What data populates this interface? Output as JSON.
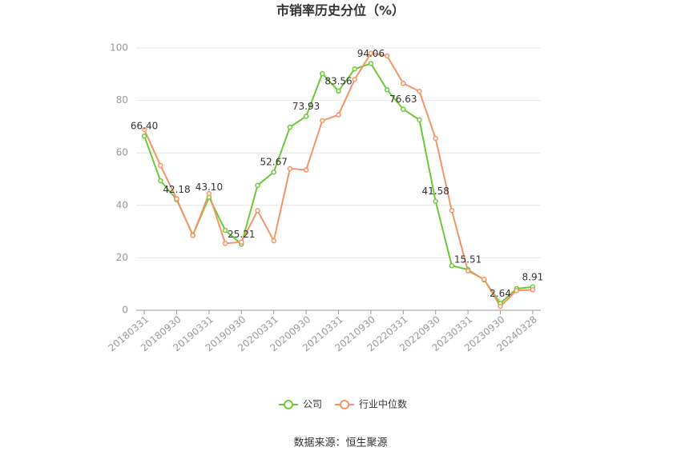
{
  "chart_data": {
    "type": "line",
    "title": "市销率历史分位（%）",
    "source": "数据来源：恒生聚源",
    "categories": [
      "20180331",
      null,
      "20180930",
      null,
      "20190331",
      null,
      "20190930",
      null,
      "20200331",
      null,
      "20200930",
      null,
      "20210331",
      null,
      "20210930",
      null,
      "20220331",
      null,
      "20220930",
      null,
      "20230331",
      null,
      "20230930",
      null,
      "20240328"
    ],
    "series": [
      {
        "name": "公司",
        "color": "#6cc93a",
        "values": [
          66.4,
          49.4,
          42.18,
          28.7,
          43.1,
          30.5,
          25.21,
          47.6,
          52.67,
          69.8,
          73.93,
          90.2,
          83.56,
          92,
          94.06,
          84.1,
          76.63,
          72.6,
          41.58,
          17,
          15.51,
          11.6,
          2.64,
          8.2,
          8.91
        ],
        "value_labels": [
          "66.40",
          null,
          "42.18",
          null,
          "43.10",
          null,
          "25.21",
          null,
          "52.67",
          null,
          "73.93",
          null,
          "83.56",
          null,
          "94.06",
          null,
          "76.63",
          null,
          "41.58",
          null,
          "15.51",
          null,
          "2.64",
          null,
          "8.91"
        ]
      },
      {
        "name": "行业中位数",
        "color": "#f39466",
        "values": [
          68.9,
          55.2,
          42.5,
          28.5,
          44.5,
          25.5,
          26,
          38,
          26.5,
          54,
          53.5,
          72.3,
          74.5,
          88,
          98,
          97,
          86.5,
          83.5,
          65.5,
          38,
          15,
          11.8,
          1.5,
          7.5,
          7.8
        ]
      }
    ],
    "ylim": [
      0,
      100
    ],
    "yticks": [
      0,
      20,
      40,
      60,
      80,
      100
    ],
    "grid": true,
    "legend": "bottom"
  }
}
